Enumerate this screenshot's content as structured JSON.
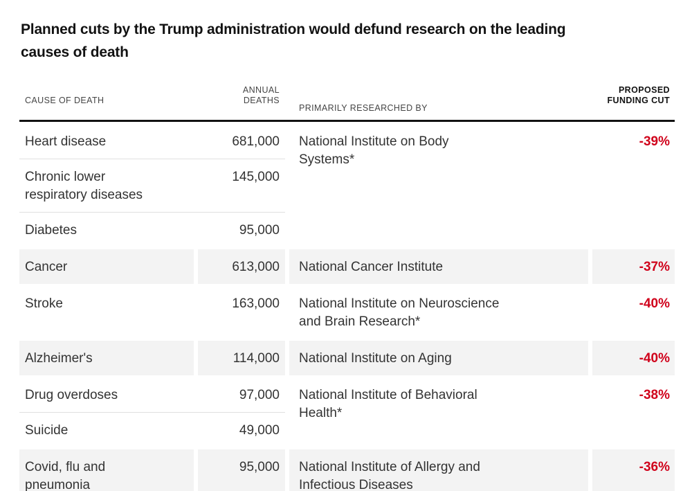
{
  "title": "Planned cuts by the Trump administration would defund research on the leading\ncauses of death",
  "table": {
    "headers": {
      "cause": "CAUSE OF DEATH",
      "deaths": "ANNUAL\nDEATHS",
      "institute": "PRIMARILY RESEARCHED BY",
      "cut": "PROPOSED\nFUNDING CUT"
    },
    "colors": {
      "accent_red": "#d0021b",
      "shaded_row_bg": "#f3f3f3",
      "header_rule": "#121212",
      "divider": "#e0e0e0"
    },
    "groups": [
      {
        "shaded": false,
        "rows": [
          {
            "cause": "Heart disease",
            "deaths": "681,000"
          },
          {
            "cause": "Chronic lower\nrespiratory diseases",
            "deaths": "145,000"
          },
          {
            "cause": "Diabetes",
            "deaths": "95,000"
          }
        ],
        "institute": "National Institute on Body\nSystems*",
        "cut": "-39%"
      },
      {
        "shaded": true,
        "rows": [
          {
            "cause": "Cancer",
            "deaths": "613,000"
          }
        ],
        "institute": "National Cancer Institute",
        "cut": "-37%"
      },
      {
        "shaded": false,
        "rows": [
          {
            "cause": "Stroke",
            "deaths": "163,000"
          }
        ],
        "institute": "National Institute on Neuroscience\nand Brain Research*",
        "cut": "-40%"
      },
      {
        "shaded": true,
        "rows": [
          {
            "cause": "Alzheimer's",
            "deaths": "114,000"
          }
        ],
        "institute": "National Institute on Aging",
        "cut": "-40%"
      },
      {
        "shaded": false,
        "rows": [
          {
            "cause": "Drug overdoses",
            "deaths": "97,000"
          },
          {
            "cause": "Suicide",
            "deaths": "49,000"
          }
        ],
        "institute": "National Institute of Behavioral\nHealth*",
        "cut": "-38%"
      },
      {
        "shaded": true,
        "rows": [
          {
            "cause": "Covid, flu and\npneumonia",
            "deaths": "95,000"
          }
        ],
        "institute": "National Institute of Allergy and\nInfectious Diseases",
        "cut": "-36%"
      }
    ]
  },
  "chart_data": {
    "type": "table",
    "title": "Planned cuts by the Trump administration would defund research on the leading causes of death",
    "columns": [
      "Cause of death",
      "Annual deaths",
      "Primarily researched by",
      "Proposed funding cut"
    ],
    "rows": [
      [
        "Heart disease",
        681000,
        "National Institute on Body Systems*",
        "-39%"
      ],
      [
        "Chronic lower respiratory diseases",
        145000,
        "National Institute on Body Systems*",
        "-39%"
      ],
      [
        "Diabetes",
        95000,
        "National Institute on Body Systems*",
        "-39%"
      ],
      [
        "Cancer",
        613000,
        "National Cancer Institute",
        "-37%"
      ],
      [
        "Stroke",
        163000,
        "National Institute on Neuroscience and Brain Research*",
        "-40%"
      ],
      [
        "Alzheimer's",
        114000,
        "National Institute on Aging",
        "-40%"
      ],
      [
        "Drug overdoses",
        97000,
        "National Institute of Behavioral Health*",
        "-38%"
      ],
      [
        "Suicide",
        49000,
        "National Institute of Behavioral Health*",
        "-38%"
      ],
      [
        "Covid, flu and pneumonia",
        95000,
        "National Institute of Allergy and Infectious Diseases",
        "-36%"
      ]
    ]
  }
}
